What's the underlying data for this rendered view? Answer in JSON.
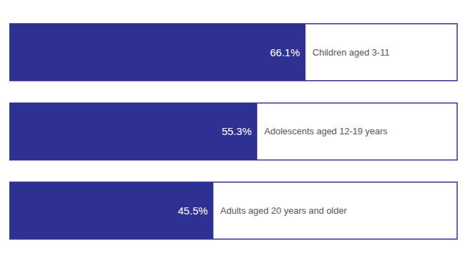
{
  "chart_data": {
    "type": "bar",
    "orientation": "horizontal",
    "categories": [
      "Children aged 3-11",
      "Adolescents aged 12-19 years",
      "Adults aged 20 years and older"
    ],
    "values": [
      66.1,
      55.3,
      45.5
    ],
    "value_labels": [
      "66.1%",
      "55.3%",
      "45.5%"
    ],
    "data_labels": true,
    "color": "#2E3192",
    "xlim": [
      0,
      100
    ],
    "tick_labels": false,
    "grid": false
  }
}
